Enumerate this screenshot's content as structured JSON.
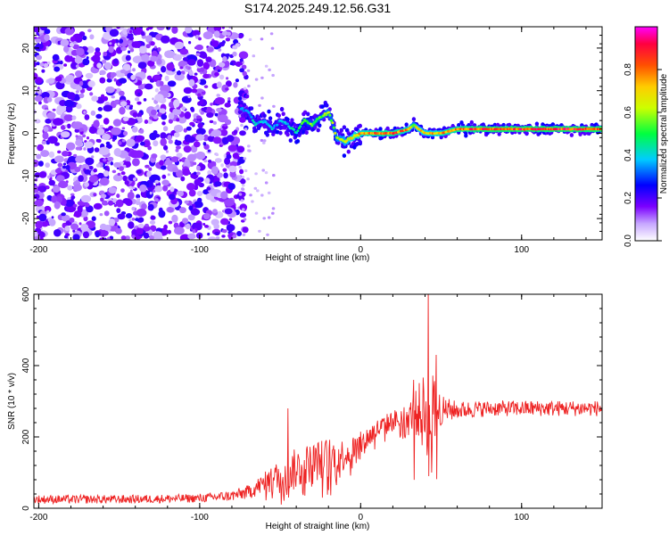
{
  "title": "S174.2025.249.12.56.G31",
  "chart_data": [
    {
      "type": "heatmap",
      "xlabel": "Height of straight line (km)",
      "ylabel": "Frequency (Hz)",
      "xlim": [
        -203,
        150
      ],
      "ylim": [
        -25,
        25
      ],
      "xticks": [
        -200,
        -100,
        0,
        100
      ],
      "yticks": [
        -20,
        -10,
        0,
        10,
        20
      ],
      "colorbar": {
        "label": "Normalized spectral amplitude",
        "range": [
          0.0,
          1.0
        ],
        "ticks": [
          "0.0",
          "0.2",
          "0.4",
          "0.6",
          "0.8"
        ],
        "colormap": [
          "#ffffff",
          "#7b00ff",
          "#0000ff",
          "#00ffff",
          "#00ff00",
          "#ffff00",
          "#ff8000",
          "#ff0000",
          "#ff00ff"
        ]
      },
      "ridge": {
        "description_values": "frequency (Hz) of dominant spectral ridge vs height (km)",
        "x": [
          -75,
          -70,
          -65,
          -60,
          -55,
          -50,
          -45,
          -40,
          -35,
          -30,
          -25,
          -20,
          -17,
          -15,
          -10,
          -5,
          0,
          10,
          20,
          30,
          33,
          36,
          40,
          50,
          60,
          80,
          100,
          120,
          150
        ],
        "freq": [
          6,
          5,
          2,
          3,
          1,
          3,
          2,
          0,
          3,
          2,
          4,
          5,
          2,
          -1,
          -2,
          -1,
          0,
          0,
          0,
          1,
          2,
          1,
          0,
          0,
          1,
          1,
          1,
          1,
          1
        ],
        "amplitude": [
          0.3,
          0.35,
          0.4,
          0.35,
          0.4,
          0.35,
          0.4,
          0.45,
          0.5,
          0.55,
          0.55,
          0.6,
          0.55,
          0.6,
          0.65,
          0.7,
          0.75,
          0.8,
          0.8,
          0.75,
          0.6,
          0.7,
          0.7,
          0.75,
          0.8,
          0.85,
          0.85,
          0.85,
          0.85
        ]
      },
      "noise_region": {
        "x_from": -203,
        "x_to": -75,
        "amplitude_range": [
          0.05,
          0.3
        ]
      }
    },
    {
      "type": "line",
      "xlabel": "Height of straight line (km)",
      "ylabel": "SNR (10 * v/v)",
      "xlim": [
        -203,
        150
      ],
      "ylim": [
        0,
        600
      ],
      "xticks": [
        -200,
        -100,
        0,
        100
      ],
      "yticks": [
        0,
        200,
        400,
        600
      ],
      "series": [
        {
          "name": "SNR",
          "color": "#ee2222",
          "envelope_x": [
            -203,
            -150,
            -100,
            -80,
            -70,
            -60,
            -50,
            -40,
            -30,
            -20,
            -10,
            0,
            10,
            20,
            30,
            35,
            40,
            42,
            45,
            50,
            60,
            80,
            100,
            120,
            150
          ],
          "envelope_mean": [
            25,
            25,
            28,
            35,
            45,
            70,
            90,
            110,
            130,
            140,
            150,
            180,
            220,
            245,
            260,
            270,
            265,
            300,
            270,
            275,
            275,
            280,
            280,
            280,
            280
          ],
          "envelope_noise": [
            12,
            12,
            12,
            15,
            20,
            30,
            50,
            60,
            55,
            60,
            45,
            35,
            30,
            30,
            35,
            70,
            120,
            160,
            110,
            40,
            25,
            22,
            22,
            22,
            22
          ],
          "spikes": [
            {
              "x": -45,
              "y": 280
            },
            {
              "x": 33,
              "y": 360
            },
            {
              "x": 42,
              "y": 600
            },
            {
              "x": 47,
              "y": 430
            }
          ]
        }
      ]
    }
  ]
}
